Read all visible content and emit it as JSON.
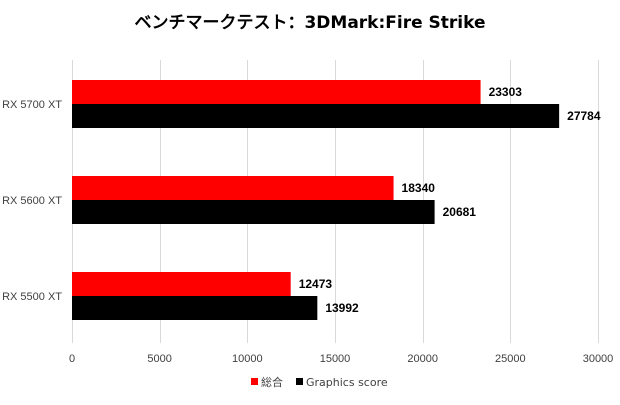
{
  "chart_data": {
    "type": "bar",
    "orientation": "horizontal",
    "title": "ベンチマークテスト：3DMark:Fire Strike",
    "categories": [
      "RX 5700 XT",
      "RX 5600 XT",
      "RX 5500 XT"
    ],
    "series": [
      {
        "name": "総合",
        "color": "#ff0000",
        "values": [
          23303,
          18340,
          12473
        ]
      },
      {
        "name": "Graphics score",
        "color": "#000000",
        "values": [
          27784,
          20681,
          13992
        ]
      }
    ],
    "xlim": [
      0,
      30000
    ],
    "xticks": [
      0,
      5000,
      10000,
      15000,
      20000,
      25000,
      30000
    ],
    "grid": true,
    "legend": "bottom-center",
    "xlabel": "",
    "ylabel": ""
  }
}
